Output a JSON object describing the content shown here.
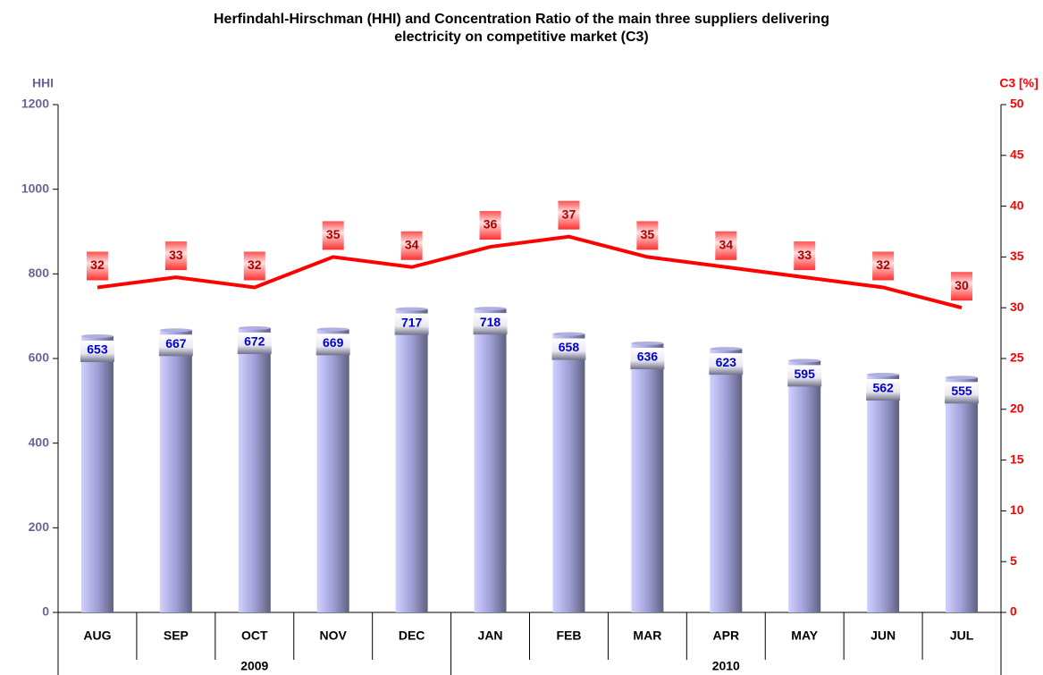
{
  "chart_data": {
    "type": "bar_line",
    "title": "Herfindahl-Hirschman (HHI) and Concentration Ratio of the main three suppliers delivering electricity on competitive market (C3)",
    "y_label": "HHI",
    "y2_label": "C3 [%]",
    "categories": [
      "AUG",
      "SEP",
      "OCT",
      "NOV",
      "DEC",
      "JAN",
      "FEB",
      "MAR",
      "APR",
      "MAY",
      "JUN",
      "JUL"
    ],
    "years": [
      "2009",
      null,
      null,
      null,
      null,
      "2010",
      null,
      null,
      null,
      null,
      null,
      null
    ],
    "series": [
      {
        "name": "HHI",
        "type": "bar",
        "color": "#9999dd",
        "values": [
          653,
          667,
          672,
          669,
          717,
          718,
          658,
          636,
          623,
          595,
          562,
          555
        ]
      },
      {
        "name": "C3",
        "type": "line",
        "axis": "y2",
        "color": "#ff0000",
        "values": [
          32,
          33,
          32,
          35,
          34,
          36,
          37,
          35,
          34,
          33,
          32,
          30
        ]
      }
    ],
    "ylim": [
      0,
      1200
    ],
    "yticks": [
      0,
      200,
      400,
      600,
      800,
      1000,
      1200
    ],
    "y2lim": [
      0,
      50
    ],
    "y2ticks": [
      0,
      5,
      10,
      15,
      20,
      25,
      30,
      35,
      40,
      45,
      50
    ]
  }
}
